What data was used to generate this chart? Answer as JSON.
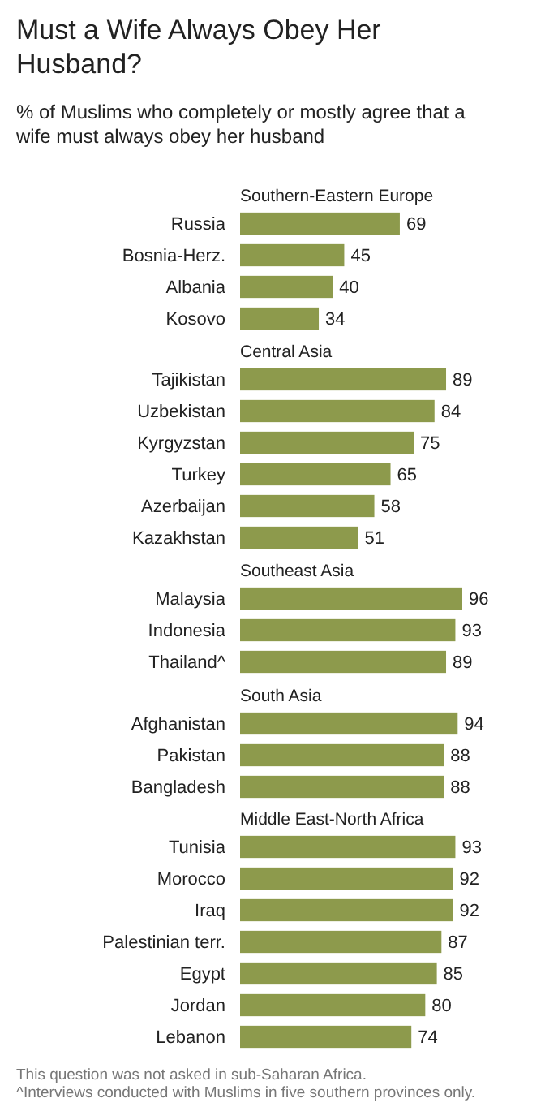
{
  "chart_data": [
    {
      "type": "other",
      "title": "Must a Wife Always Obey Her Husband?",
      "subtitle": "% of Muslims who completely or mostly agree that a wife must always obey her husband"
    },
    {
      "type": "bar",
      "orientation": "horizontal",
      "title": "Southern-Eastern Europe",
      "categories": [
        "Russia",
        "Bosnia-Herz.",
        "Albania",
        "Kosovo"
      ],
      "values": [
        69,
        45,
        40,
        34
      ],
      "color": "#8d9a4c",
      "tick_labels": false,
      "data_labels": true
    },
    {
      "type": "bar",
      "orientation": "horizontal",
      "title": "Central Asia",
      "categories": [
        "Tajikistan",
        "Uzbekistan",
        "Kyrgyzstan",
        "Turkey",
        "Azerbaijan",
        "Kazakhstan"
      ],
      "values": [
        89,
        84,
        75,
        65,
        58,
        51
      ],
      "color": "#8d9a4c",
      "tick_labels": false,
      "data_labels": true
    },
    {
      "type": "bar",
      "orientation": "horizontal",
      "title": "Southeast Asia",
      "categories": [
        "Malaysia",
        "Indonesia",
        "Thailand^"
      ],
      "values": [
        96,
        93,
        89
      ],
      "color": "#8d9a4c",
      "tick_labels": false,
      "data_labels": true
    },
    {
      "type": "bar",
      "orientation": "horizontal",
      "title": "South Asia",
      "categories": [
        "Afghanistan",
        "Pakistan",
        "Bangladesh"
      ],
      "values": [
        94,
        88,
        88
      ],
      "color": "#8d9a4c",
      "tick_labels": false,
      "data_labels": true
    },
    {
      "type": "bar",
      "orientation": "horizontal",
      "title": "Middle East-North Africa",
      "categories": [
        "Tunisia",
        "Morocco",
        "Iraq",
        "Palestinian terr.",
        "Egypt",
        "Jordan",
        "Lebanon"
      ],
      "values": [
        93,
        92,
        92,
        87,
        85,
        80,
        74
      ],
      "color": "#8d9a4c",
      "tick_labels": false,
      "data_labels": true,
      "annotations": [
        "This question was not asked in sub-Saharan Africa.",
        "^Interviews conducted with Muslims in five southern provinces only."
      ]
    }
  ]
}
